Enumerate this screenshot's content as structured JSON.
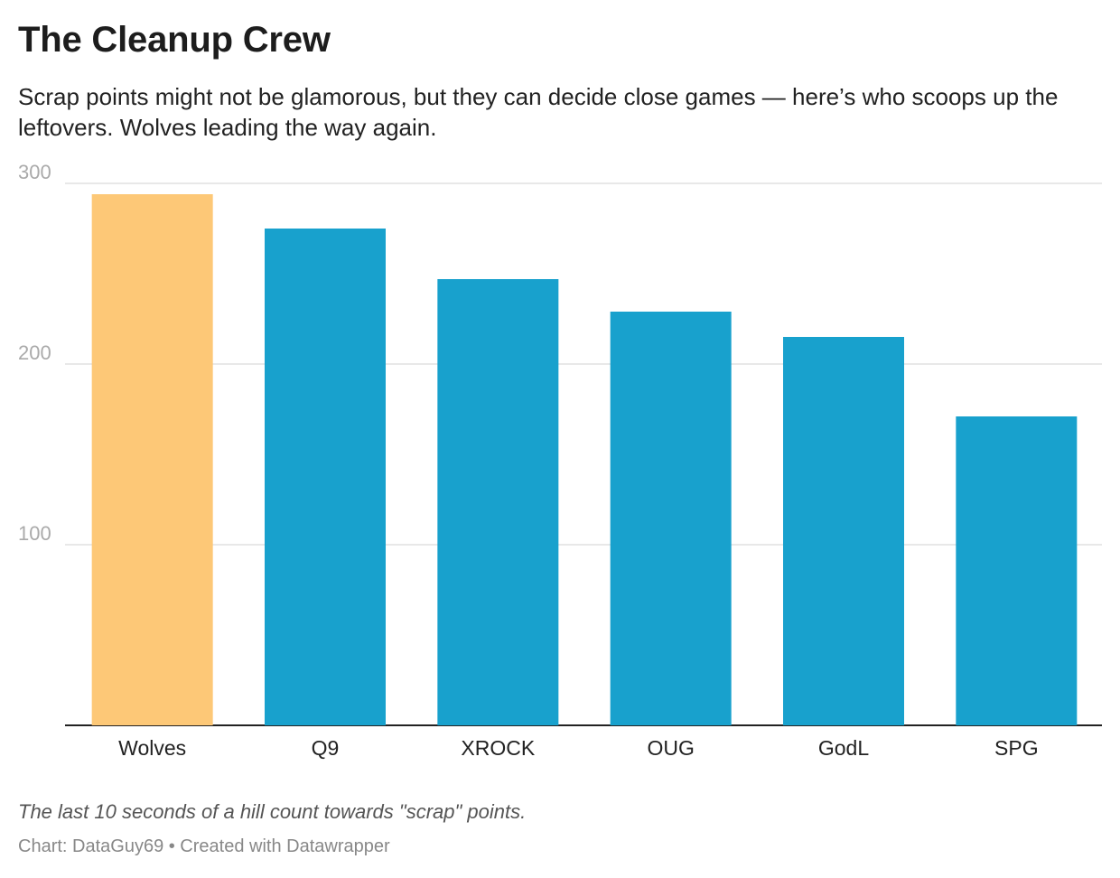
{
  "chart_data": {
    "type": "bar",
    "title": "The Cleanup Crew",
    "subtitle": "Scrap points might not be glamorous, but they can decide close games — here’s who scoops up the leftovers. Wolves leading the way again.",
    "categories": [
      "Wolves",
      "Q9",
      "XROCK",
      "OUG",
      "GodL",
      "SPG"
    ],
    "values": [
      294,
      275,
      247,
      229,
      215,
      171
    ],
    "highlight_index": 0,
    "colors": {
      "highlight": "#fdc877",
      "default": "#18a1cd",
      "grid": "#e0e0e0",
      "axis": "#222222",
      "tick": "#aaaaaa"
    },
    "yticks": [
      100,
      200,
      300
    ],
    "ylim": [
      0,
      300
    ],
    "grid": true,
    "notes": "The last 10 seconds of a hill count towards \"scrap\" points.",
    "source": "Chart: DataGuy69 • Created with Datawrapper"
  }
}
